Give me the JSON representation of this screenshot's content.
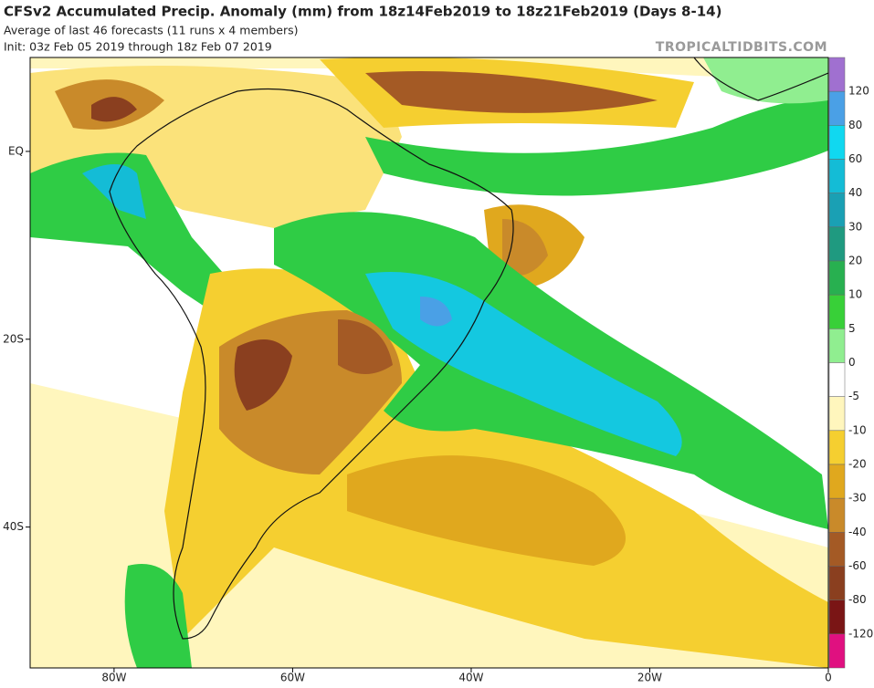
{
  "header": {
    "title": "CFSv2 Accumulated Precip. Anomaly (mm) from 18z14Feb2019 to 18z21Feb2019 (Days 8-14)",
    "subtitle": "Average of last 46 forecasts (11 runs x 4 members)",
    "init": "Init: 03z Feb 05 2019 through 18z Feb 07 2019",
    "watermark": "TROPICALTIDBITS.COM"
  },
  "map": {
    "xlim": [
      -89.4,
      0
    ],
    "ylim": [
      -55,
      10
    ],
    "xticks": [
      {
        "value": -80,
        "label": "80W"
      },
      {
        "value": -60,
        "label": "60W"
      },
      {
        "value": -40,
        "label": "40W"
      },
      {
        "value": -20,
        "label": "20W"
      },
      0
    ],
    "yticks": [
      {
        "value": 0,
        "label": "EQ"
      },
      {
        "value": -20,
        "label": "20S"
      },
      {
        "value": -40,
        "label": "40S"
      }
    ]
  },
  "colorbar": {
    "levels": [
      120,
      80,
      60,
      40,
      30,
      20,
      10,
      5,
      0,
      -5,
      -10,
      -20,
      -30,
      -40,
      -60,
      -80,
      -120
    ],
    "colors": [
      "#a070d0",
      "#4aa0e6",
      "#10d8f0",
      "#14bcd6",
      "#1aa0b4",
      "#1f9a80",
      "#28b050",
      "#38d038",
      "#90ee90",
      "#ffffff",
      "#fff6bd",
      "#f5cf30",
      "#e0a81e",
      "#c98a2a",
      "#a45a25",
      "#8a3f1f",
      "#7a1515",
      "#e01080"
    ]
  }
}
